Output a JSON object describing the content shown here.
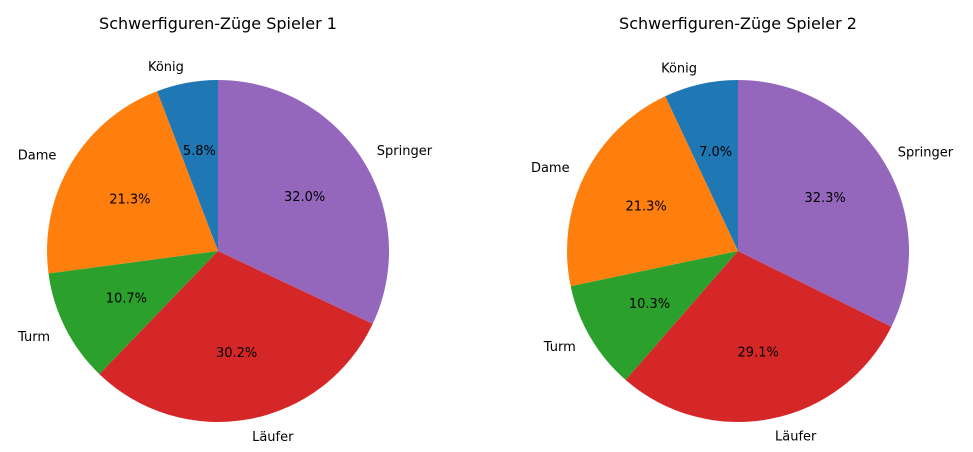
{
  "chart_data": [
    {
      "type": "pie",
      "title": "Schwerfiguren-Züge Spieler 1",
      "categories": [
        "König",
        "Dame",
        "Turm",
        "Läufer",
        "Springer"
      ],
      "values": [
        5.8,
        21.3,
        10.7,
        30.2,
        32.0
      ],
      "value_labels": [
        "5.8%",
        "21.3%",
        "10.7%",
        "30.2%",
        "32.0%"
      ],
      "colors": [
        "#1f77b4",
        "#ff7f0e",
        "#2ca02c",
        "#d62728",
        "#9467bd"
      ],
      "start_angle": "top",
      "direction": "counterclockwise"
    },
    {
      "type": "pie",
      "title": "Schwerfiguren-Züge Spieler 2",
      "categories": [
        "König",
        "Dame",
        "Turm",
        "Läufer",
        "Springer"
      ],
      "values": [
        7.0,
        21.3,
        10.3,
        29.1,
        32.3
      ],
      "value_labels": [
        "7.0%",
        "21.3%",
        "10.3%",
        "29.1%",
        "32.3%"
      ],
      "colors": [
        "#1f77b4",
        "#ff7f0e",
        "#2ca02c",
        "#d62728",
        "#9467bd"
      ],
      "start_angle": "top",
      "direction": "counterclockwise"
    }
  ]
}
